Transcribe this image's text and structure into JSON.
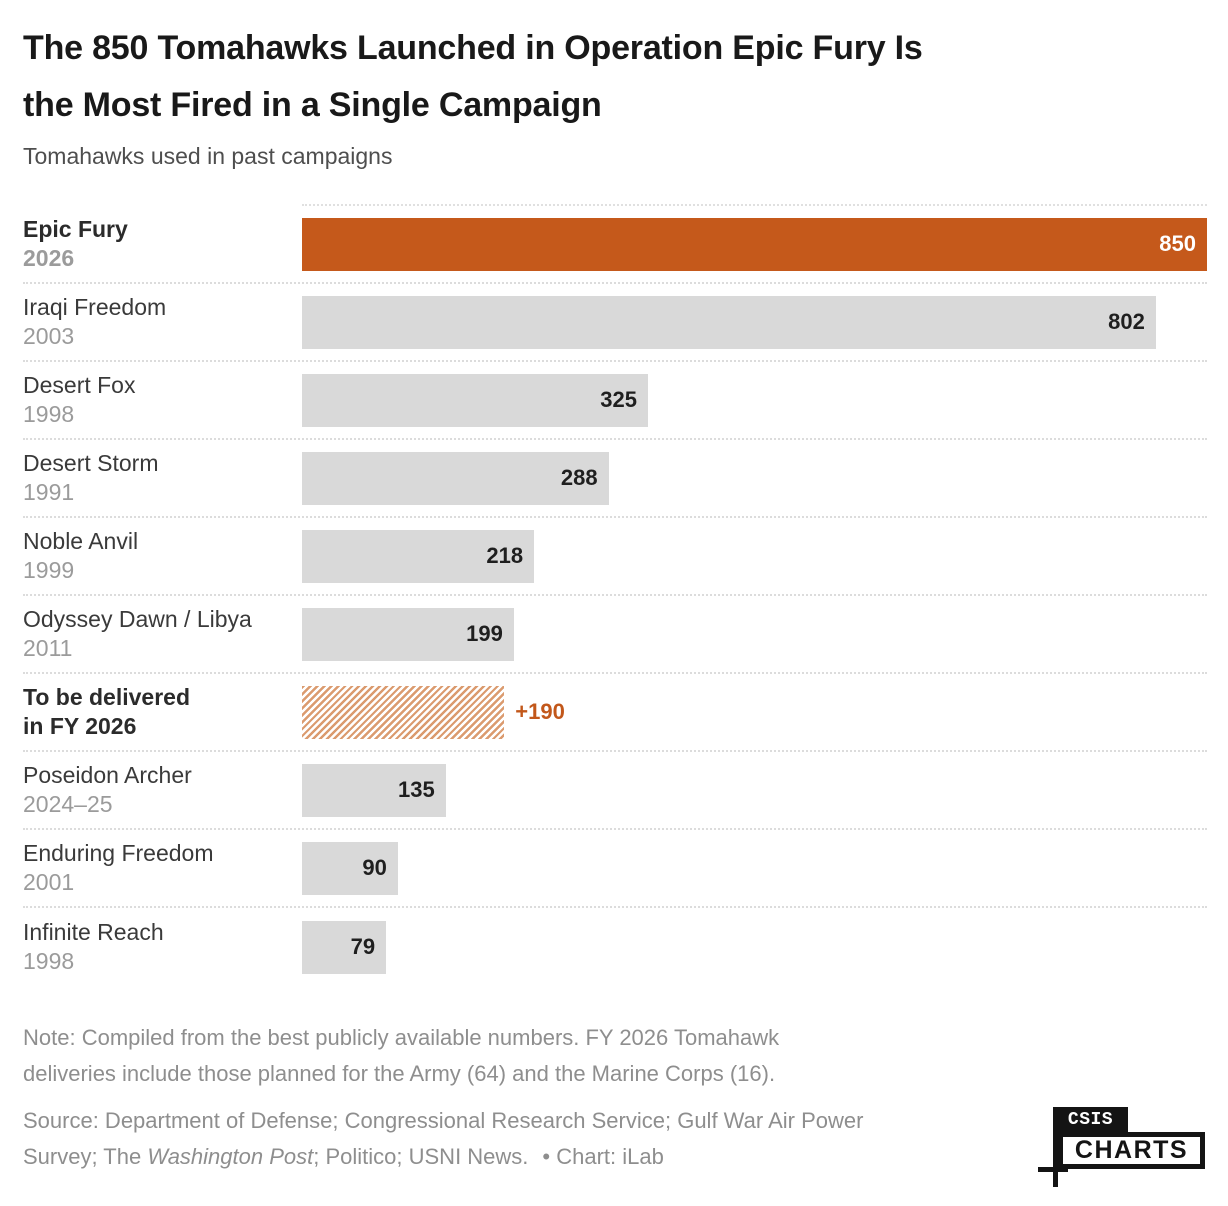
{
  "header": {
    "title_lines": [
      "The 850 Tomahawks Launched in Operation Epic Fury Is",
      "the Most Fired in a Single Campaign"
    ],
    "subtitle": "Tomahawks used in past campaigns"
  },
  "chart_data": {
    "type": "bar",
    "orientation": "horizontal",
    "title": "The 850 Tomahawks Launched in Operation Epic Fury Is the Most Fired in a Single Campaign",
    "subtitle": "Tomahawks used in past campaigns",
    "xlim": [
      0,
      850
    ],
    "max_value": 850,
    "grid": "dotted row separators only, no value axis shown",
    "colors": {
      "highlight_bar": "#c5591b",
      "default_bar": "#d9d9d9",
      "hatch_stripe": "#db9b6f",
      "value_inside_dark": "#1f1f1f",
      "value_inside_light": "#ffffff",
      "value_outside_orange": "#c2571a"
    },
    "categories": [
      "Epic Fury",
      "Iraqi Freedom",
      "Desert Fox",
      "Desert Storm",
      "Noble Anvil",
      "Odyssey Dawn / Libya",
      "To be delivered in FY 2026",
      "Poseidon Archer",
      "Enduring Freedom",
      "Infinite Reach"
    ],
    "values": [
      850,
      802,
      325,
      288,
      218,
      199,
      190,
      135,
      90,
      79
    ],
    "rows": [
      {
        "label": "Epic Fury",
        "sublabel": "2026",
        "sublabel_style": "year-bold",
        "label_bold": true,
        "value": 850,
        "display_value": "850",
        "bar_style": "orange",
        "value_style": "white",
        "value_outside": false
      },
      {
        "label": "Iraqi Freedom",
        "sublabel": "2003",
        "sublabel_style": "year",
        "label_bold": false,
        "value": 802,
        "display_value": "802",
        "bar_style": "gray",
        "value_style": "dark",
        "value_outside": false
      },
      {
        "label": "Desert Fox",
        "sublabel": "1998",
        "sublabel_style": "year",
        "label_bold": false,
        "value": 325,
        "display_value": "325",
        "bar_style": "gray",
        "value_style": "dark",
        "value_outside": false
      },
      {
        "label": "Desert Storm",
        "sublabel": "1991",
        "sublabel_style": "year",
        "label_bold": false,
        "value": 288,
        "display_value": "288",
        "bar_style": "gray",
        "value_style": "dark",
        "value_outside": false
      },
      {
        "label": "Noble Anvil",
        "sublabel": "1999",
        "sublabel_style": "year",
        "label_bold": false,
        "value": 218,
        "display_value": "218",
        "bar_style": "gray",
        "value_style": "dark",
        "value_outside": false
      },
      {
        "label": "Odyssey Dawn / Libya",
        "sublabel": "2011",
        "sublabel_style": "year",
        "label_bold": false,
        "value": 199,
        "display_value": "199",
        "bar_style": "gray",
        "value_style": "dark",
        "value_outside": false
      },
      {
        "label": "To be delivered",
        "sublabel": "in FY 2026",
        "sublabel_style": "dark",
        "label_bold": true,
        "value": 190,
        "display_value": "+190",
        "bar_style": "hatched",
        "value_style": "orange",
        "value_outside": true
      },
      {
        "label": "Poseidon Archer",
        "sublabel": "2024–25",
        "sublabel_style": "year",
        "label_bold": false,
        "value": 135,
        "display_value": "135",
        "bar_style": "gray",
        "value_style": "dark",
        "value_outside": false
      },
      {
        "label": "Enduring Freedom",
        "sublabel": "2001",
        "sublabel_style": "year",
        "label_bold": false,
        "value": 90,
        "display_value": "90",
        "bar_style": "gray",
        "value_style": "dark",
        "value_outside": false
      },
      {
        "label": "Infinite Reach",
        "sublabel": "1998",
        "sublabel_style": "year",
        "label_bold": false,
        "value": 79,
        "display_value": "79",
        "bar_style": "gray",
        "value_style": "dark",
        "value_outside": false
      }
    ]
  },
  "footer": {
    "note_lines": [
      "Note: Compiled from the best publicly available numbers. FY 2026 Tomahawk",
      "deliveries include those planned for the Army (64) and the Marine Corps (16)."
    ],
    "source_line1": "Source: Department of Defense; Congressional Research Service; Gulf War Air Power",
    "source_line2_pre": "Survey; The ",
    "source_line2_italic": "Washington Post",
    "source_line2_post": "; Politico; USNI News.",
    "credit": "• Chart: iLab"
  },
  "logo": {
    "top_text": "CSIS",
    "bottom_text": "CHARTS"
  }
}
